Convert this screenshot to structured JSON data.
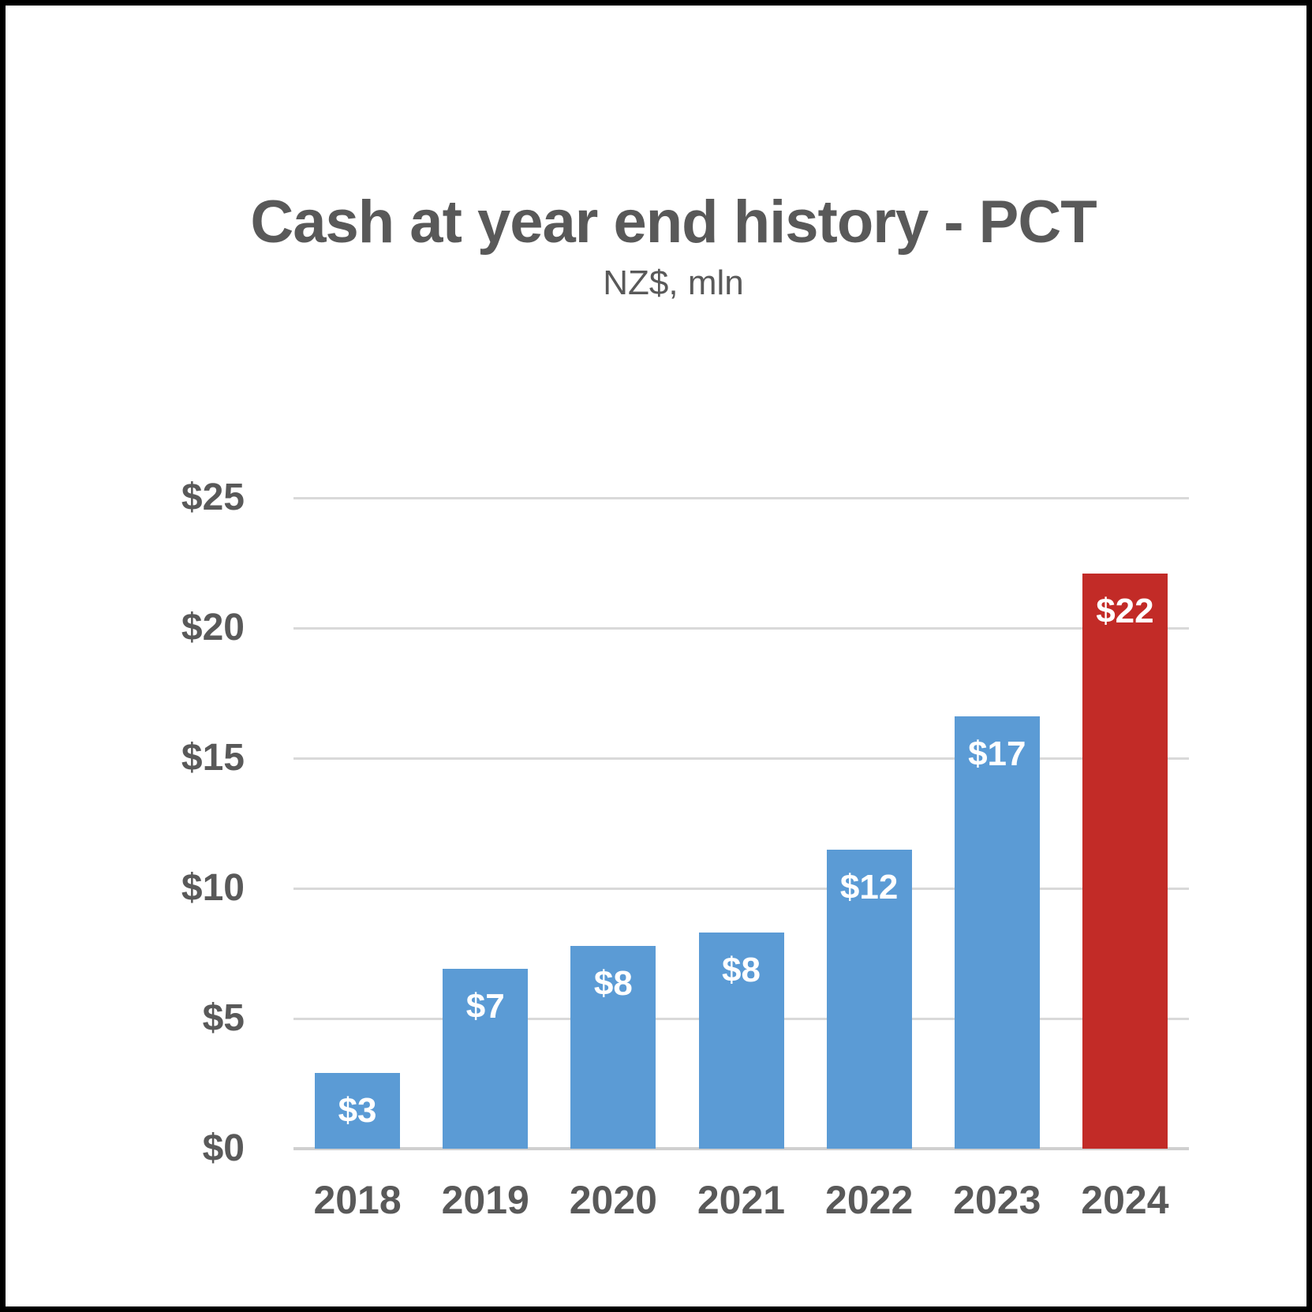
{
  "window": {
    "background_color": "#FFFFFF",
    "border_color": "#000000"
  },
  "chart_data": {
    "type": "bar",
    "title": "Cash at year end history - PCT",
    "subtitle": "NZ$, mln",
    "categories": [
      "2018",
      "2019",
      "2020",
      "2021",
      "2022",
      "2023",
      "2024"
    ],
    "values": [
      2.9,
      6.9,
      7.8,
      8.3,
      11.5,
      16.6,
      22.1
    ],
    "data_labels": [
      "$3",
      "$7",
      "$8",
      "$8",
      "$12",
      "$17",
      "$22"
    ],
    "bar_colors": [
      "#5B9BD5",
      "#5B9BD5",
      "#5B9BD5",
      "#5B9BD5",
      "#5B9BD5",
      "#5B9BD5",
      "#C22B27"
    ],
    "default_bar_color": "#5B9BD5",
    "highlight": {
      "category": "2024",
      "color": "#C22B27"
    },
    "xlabel": "",
    "ylabel": "",
    "ylim": [
      0,
      25
    ],
    "y_ticks": [
      {
        "value": 0,
        "label": "$0"
      },
      {
        "value": 5,
        "label": "$5"
      },
      {
        "value": 10,
        "label": "$10"
      },
      {
        "value": 15,
        "label": "$15"
      },
      {
        "value": 20,
        "label": "$20"
      },
      {
        "value": 25,
        "label": "$25"
      }
    ],
    "grid": true,
    "legend": false,
    "colors": {
      "data_label_text": "#FFFFFF",
      "axis_text": "#595959",
      "title_text": "#595959",
      "gridline": "#D9D9D9",
      "baseline": "#D0D0D0"
    }
  }
}
